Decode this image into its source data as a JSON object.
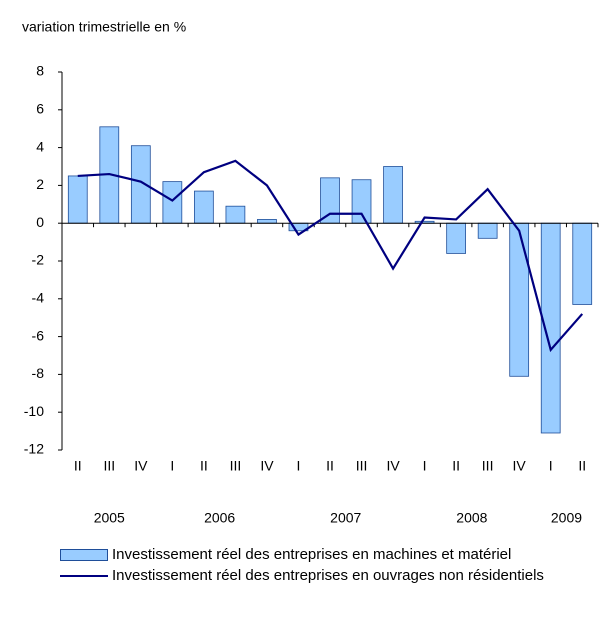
{
  "chart_data": {
    "type": "bar-line",
    "ylabel": "variation trimestrielle en %",
    "categories": [
      "II",
      "III",
      "IV",
      "I",
      "II",
      "III",
      "IV",
      "I",
      "II",
      "III",
      "IV",
      "I",
      "II",
      "III",
      "IV",
      "I",
      "II"
    ],
    "years": [
      "2005",
      null,
      null,
      "2006",
      null,
      null,
      null,
      "2007",
      null,
      null,
      null,
      "2008",
      null,
      null,
      null,
      "2009",
      null
    ],
    "series": [
      {
        "name": "Investissement réel des entreprises en machines et matériel",
        "type": "bar",
        "color": "#99ccff",
        "values": [
          2.5,
          5.1,
          4.1,
          2.2,
          1.7,
          0.9,
          0.2,
          -0.4,
          2.4,
          2.3,
          3.0,
          0.1,
          -1.6,
          -0.8,
          -8.1,
          -11.1,
          -4.3
        ]
      },
      {
        "name": "Investissement réel des entreprises en ouvrages non résidentiels",
        "type": "line",
        "color": "#000080",
        "values": [
          2.5,
          2.6,
          2.2,
          1.2,
          2.7,
          3.3,
          2.0,
          -0.6,
          0.5,
          0.5,
          -2.4,
          0.3,
          0.2,
          1.8,
          -0.4,
          -6.7,
          -4.8
        ]
      }
    ],
    "ylim": [
      -12,
      8
    ],
    "yticks": [
      -12,
      -10,
      -8,
      -6,
      -4,
      -2,
      0,
      2,
      4,
      6,
      8
    ]
  }
}
